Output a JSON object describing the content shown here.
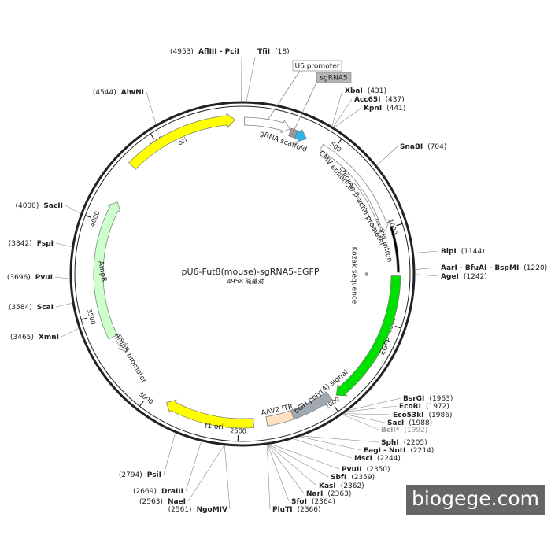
{
  "map": {
    "title": "pU6-Fut8(mouse)-sgRNA5-EGFP",
    "length_label": "4958 碱基对",
    "ticks": [
      500,
      1000,
      1500,
      2000,
      2500,
      3000,
      3500,
      4000,
      4500
    ]
  },
  "sites": [
    {
      "name": "AflIII - PciI",
      "position": "(4953)"
    },
    {
      "name": "TfiI",
      "position": "(18)"
    },
    {
      "name": "AlwNI",
      "position": "(4544)"
    },
    {
      "name": "XbaI",
      "position": "(431)"
    },
    {
      "name": "Acc65I",
      "position": "(437)"
    },
    {
      "name": "KpnI",
      "position": "(441)"
    },
    {
      "name": "SnaBI",
      "position": "(704)"
    },
    {
      "name": "BlpI",
      "position": "(1144)"
    },
    {
      "name": "AarI - BfuAI - BspMI",
      "position": "(1220)"
    },
    {
      "name": "AgeI",
      "position": "(1242)"
    },
    {
      "name": "BsrGI",
      "position": "(1963)"
    },
    {
      "name": "EcoRI",
      "position": "(1972)"
    },
    {
      "name": "Eco53kI",
      "position": "(1986)"
    },
    {
      "name": "SacI",
      "position": "(1988)"
    },
    {
      "name": "BclI*",
      "position": "(1992)"
    },
    {
      "name": "SphI",
      "position": "(2205)"
    },
    {
      "name": "EagI - NotI",
      "position": "(2214)"
    },
    {
      "name": "MscI",
      "position": "(2244)"
    },
    {
      "name": "PvuII",
      "position": "(2350)"
    },
    {
      "name": "SbfI",
      "position": "(2359)"
    },
    {
      "name": "KasI",
      "position": "(2362)"
    },
    {
      "name": "NarI",
      "position": "(2363)"
    },
    {
      "name": "SfoI",
      "position": "(2364)"
    },
    {
      "name": "PluTI",
      "position": "(2366)"
    },
    {
      "name": "SacII",
      "position": "(4000)"
    },
    {
      "name": "FspI",
      "position": "(3842)"
    },
    {
      "name": "PvuI",
      "position": "(3696)"
    },
    {
      "name": "ScaI",
      "position": "(3584)"
    },
    {
      "name": "XmnI",
      "position": "(3465)"
    },
    {
      "name": "PsiI",
      "position": "(2794)"
    },
    {
      "name": "DraIII",
      "position": "(2669)"
    },
    {
      "name": "NaeI",
      "position": "(2563)"
    },
    {
      "name": "NgoMIV",
      "position": "(2561)"
    }
  ],
  "features": [
    {
      "label": "ori"
    },
    {
      "label": "AmpR"
    },
    {
      "label": "AmpR promoter"
    },
    {
      "label": "f1 ori"
    },
    {
      "label": "AAV2 ITR"
    },
    {
      "label": "bGH poly(A) signal"
    },
    {
      "label": "EGFP"
    },
    {
      "label": "Kozak sequence"
    },
    {
      "label": "hybrid intron"
    },
    {
      "label": "CMV enhancer"
    },
    {
      "label": "chicken β-actin promoter"
    },
    {
      "label": "U6 promoter"
    },
    {
      "label": "sgRNA5"
    },
    {
      "label": "gRNA scaffold"
    }
  ],
  "watermark": "biogege.com"
}
